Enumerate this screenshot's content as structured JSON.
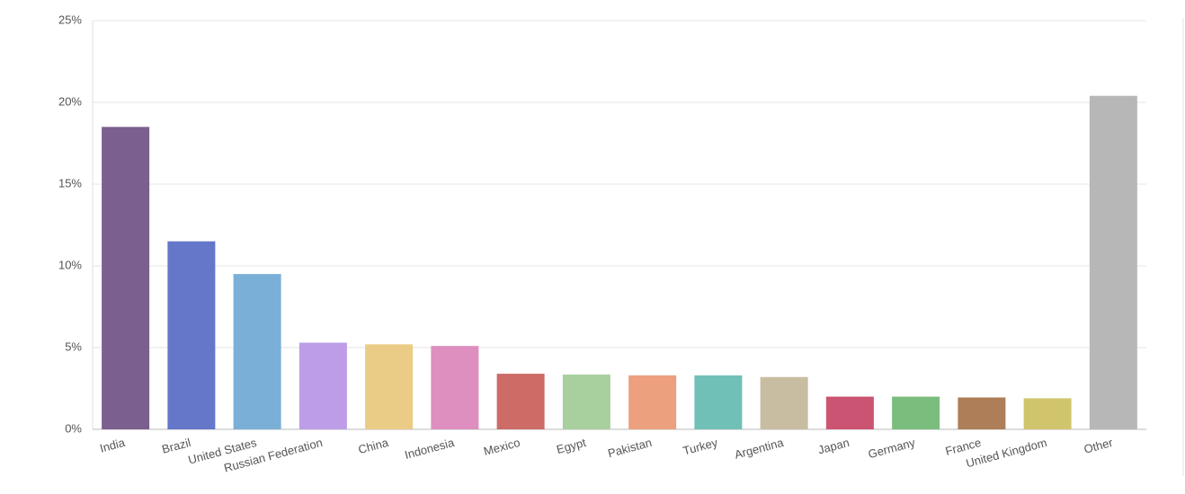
{
  "chart_data": {
    "type": "bar",
    "categories": [
      "India",
      "Brazil",
      "United States",
      "Russian Federation",
      "China",
      "Indonesia",
      "Mexico",
      "Egypt",
      "Pakistan",
      "Turkey",
      "Argentina",
      "Japan",
      "Germany",
      "France",
      "United Kingdom",
      "Other"
    ],
    "values": [
      18.5,
      11.5,
      9.5,
      5.3,
      5.2,
      5.1,
      3.4,
      3.35,
      3.3,
      3.3,
      3.2,
      2.0,
      2.0,
      1.95,
      1.9,
      20.4
    ],
    "colors": [
      "#7b5f8f",
      "#6577c9",
      "#7aafd7",
      "#bd9de8",
      "#ebcc86",
      "#de8ebf",
      "#cd6b66",
      "#a8cf9e",
      "#eca07e",
      "#70c0b8",
      "#c8bda1",
      "#cc5473",
      "#7abd7c",
      "#ad7e57",
      "#d0c56d",
      "#b7b7b7"
    ],
    "ylim": [
      0,
      25
    ],
    "yticks": [
      {
        "value": 0,
        "label": "0%"
      },
      {
        "value": 5,
        "label": "5%"
      },
      {
        "value": 10,
        "label": "10%"
      },
      {
        "value": 15,
        "label": "15%"
      },
      {
        "value": 20,
        "label": "20%"
      },
      {
        "value": 25,
        "label": "25%"
      }
    ],
    "grid": true
  }
}
